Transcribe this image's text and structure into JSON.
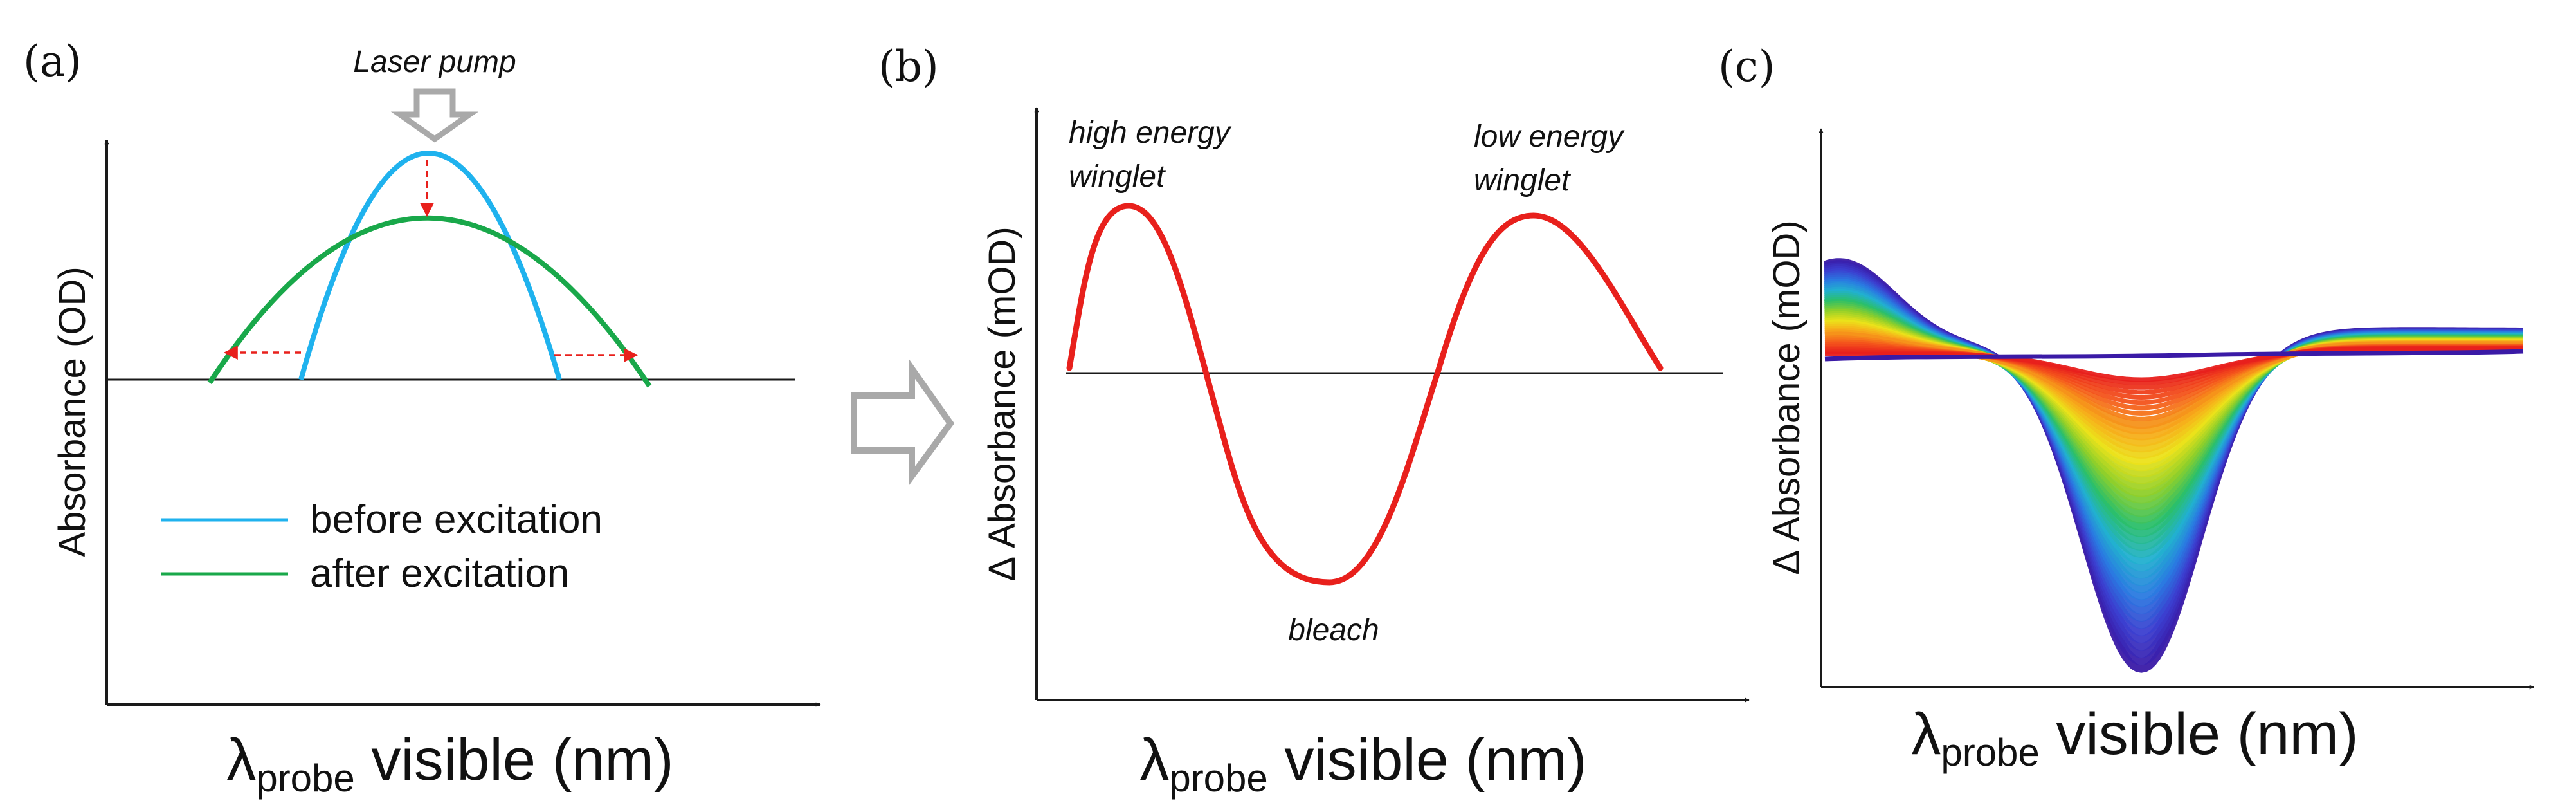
{
  "colors": {
    "axis": "#1a1a1a",
    "before": "#1fb2ee",
    "after": "#19a84a",
    "arrow_red": "#e8201c",
    "difference": "#e8201c",
    "pump_arrow": "#a9a9a9",
    "transition_arrow": "#a9a9a9",
    "kinetics_early": "#3a1aa6",
    "kinetics_ramp": [
      "#3a1aa6",
      "#3b3fd0",
      "#2a7ae0",
      "#22b0d0",
      "#2bbf6a",
      "#8fcf2a",
      "#ece21a",
      "#f7a21a",
      "#f3531b",
      "#e8201c"
    ]
  },
  "panel_a": {
    "letter": "(a)",
    "pump_label": "Laser pump",
    "ylabel": "Absorbance (OD)",
    "xlabel_symbol": "λ",
    "xlabel_sub": "probe",
    "xlabel_rest": " visible (nm)",
    "legend": [
      {
        "label": "before excitation",
        "color_key": "before"
      },
      {
        "label": "after excitation",
        "color_key": "after"
      }
    ]
  },
  "panel_b": {
    "letter": "(b)",
    "ylabel": "Δ Absorbance (mOD)",
    "xlabel_symbol": "λ",
    "xlabel_sub": "probe",
    "xlabel_rest": " visible (nm)",
    "annotations": {
      "high_1": "high energy",
      "high_2": "winglet",
      "low_1": "low energy",
      "low_2": "winglet",
      "bleach": "bleach"
    }
  },
  "panel_c": {
    "letter": "(c)",
    "ylabel": "Δ Absorbance (mOD)",
    "xlabel_symbol": "λ",
    "xlabel_sub": "probe",
    "xlabel_rest": " visible (nm)"
  }
}
